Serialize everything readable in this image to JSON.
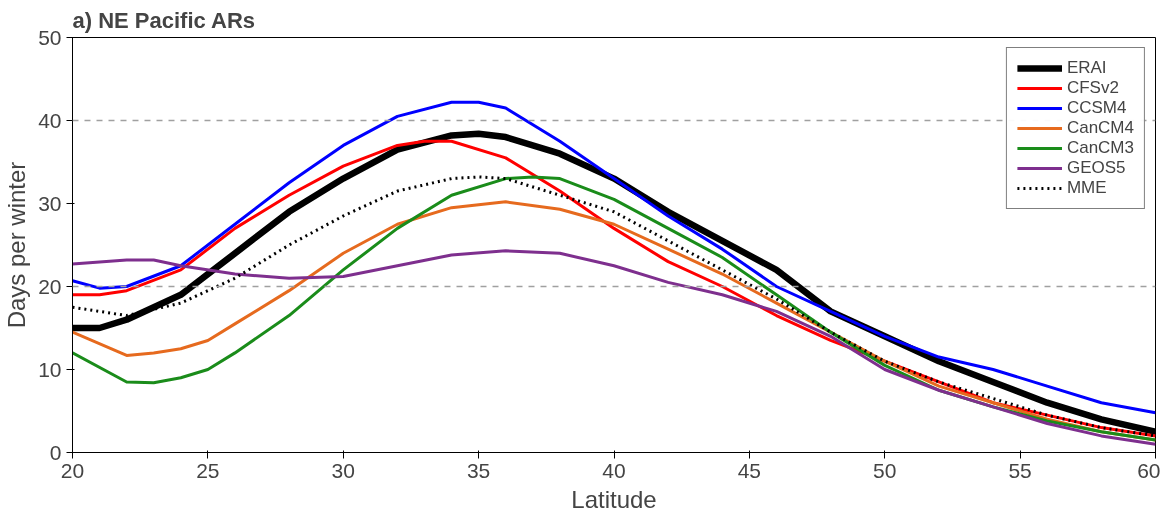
{
  "chart_data": {
    "type": "line",
    "title": "a) NE Pacific ARs",
    "xlabel": "Latitude",
    "ylabel": "Days per winter",
    "xlim": [
      20,
      60
    ],
    "ylim": [
      0,
      50
    ],
    "xticks": [
      20,
      25,
      30,
      35,
      40,
      45,
      50,
      55,
      60
    ],
    "yticks": [
      0,
      10,
      20,
      30,
      40,
      50
    ],
    "grid": false,
    "legend": "top right",
    "line_style": "solid",
    "ref_lines": [
      {
        "axis": "y",
        "value": 20,
        "color": "#a0a0a0",
        "line_style": "dashed"
      },
      {
        "axis": "y",
        "value": 40,
        "color": "#a0a0a0",
        "line_style": "dashed"
      }
    ],
    "series": [
      {
        "name": "ERAI",
        "color": "#000000",
        "x": [
          20,
          21,
          22,
          24,
          26,
          28,
          30,
          32,
          34,
          35,
          36,
          38,
          40,
          42,
          44,
          46,
          48,
          50,
          52,
          54,
          56,
          58,
          60
        ],
        "values": [
          15,
          15,
          16,
          19,
          24,
          29,
          33,
          36.5,
          38.2,
          38.4,
          38,
          36,
          33,
          29,
          25.5,
          22,
          17,
          14,
          11,
          8.5,
          6,
          4,
          2.5
        ]
      },
      {
        "name": "CFSv2",
        "color": "#ff0000",
        "x": [
          20,
          21,
          22,
          24,
          26,
          28,
          30,
          32,
          33,
          34,
          36,
          38,
          40,
          42,
          44,
          46,
          48,
          50,
          52,
          54,
          56,
          58,
          60
        ],
        "values": [
          19,
          19,
          19.5,
          22,
          27,
          31,
          34.5,
          37,
          37.5,
          37.5,
          35.5,
          31.5,
          27,
          23,
          20,
          16.5,
          13.5,
          11,
          8.5,
          6,
          4.5,
          3,
          2
        ]
      },
      {
        "name": "CCSM4",
        "color": "#0000ff",
        "x": [
          20,
          21,
          22,
          24,
          26,
          28,
          30,
          32,
          34,
          35,
          36,
          38,
          40,
          42,
          44,
          46,
          48,
          50,
          52,
          54,
          56,
          58,
          60
        ],
        "values": [
          20.7,
          19.8,
          20,
          22.5,
          27.5,
          32.5,
          37,
          40.5,
          42.2,
          42.2,
          41.5,
          37.5,
          33,
          28.5,
          24.5,
          20,
          17,
          14,
          11.5,
          10,
          8,
          6,
          4.8
        ]
      },
      {
        "name": "CanCM4",
        "color": "#e66a1e",
        "x": [
          20,
          22,
          23,
          24,
          25,
          26,
          28,
          30,
          32,
          34,
          36,
          38,
          40,
          42,
          44,
          46,
          48,
          50,
          52,
          54,
          56,
          58,
          60
        ],
        "values": [
          14.5,
          11.7,
          12,
          12.5,
          13.5,
          15.5,
          19.5,
          24,
          27.5,
          29.5,
          30.2,
          29.3,
          27.5,
          24.5,
          21.5,
          18,
          14.5,
          11,
          8,
          6,
          4,
          2.5,
          1.5
        ]
      },
      {
        "name": "CanCM3",
        "color": "#1a8c1a",
        "x": [
          20,
          22,
          23,
          24,
          25,
          26,
          28,
          30,
          32,
          34,
          36,
          37,
          38,
          40,
          42,
          44,
          46,
          48,
          50,
          52,
          54,
          56,
          58,
          60
        ],
        "values": [
          12,
          8.5,
          8.4,
          9,
          10,
          12,
          16.5,
          22,
          27,
          31,
          33,
          33.2,
          33,
          30.5,
          27,
          23.5,
          19,
          14.5,
          10.5,
          7.5,
          5.5,
          3.8,
          2.5,
          1.5
        ]
      },
      {
        "name": "GEOS5",
        "color": "#7e2f8e",
        "x": [
          20,
          22,
          23,
          24,
          26,
          28,
          30,
          32,
          34,
          36,
          38,
          40,
          42,
          44,
          46,
          48,
          50,
          52,
          54,
          56,
          58,
          60
        ],
        "values": [
          22.7,
          23.2,
          23.2,
          22.5,
          21.5,
          21,
          21.2,
          22.5,
          23.8,
          24.3,
          24,
          22.5,
          20.5,
          19,
          17,
          14,
          10,
          7.5,
          5.5,
          3.5,
          2,
          1
        ]
      },
      {
        "name": "MME",
        "color": "#000000",
        "line_style": "dotted",
        "x": [
          20,
          22,
          24,
          26,
          28,
          30,
          32,
          34,
          35,
          36,
          38,
          40,
          42,
          44,
          46,
          48,
          50,
          52,
          54,
          56,
          58,
          60
        ],
        "values": [
          17.5,
          16.5,
          18,
          21,
          25,
          28.5,
          31.5,
          33,
          33.2,
          33,
          31,
          29,
          25.5,
          22,
          18.5,
          14.5,
          11,
          8.5,
          6.5,
          4.5,
          3,
          2
        ]
      }
    ]
  }
}
